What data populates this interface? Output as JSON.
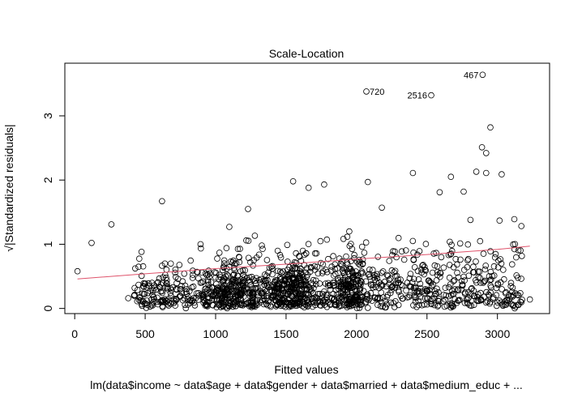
{
  "chart_data": {
    "type": "scatter",
    "title": "Scale-Location",
    "xlabel": "Fitted values",
    "ylabel": "√|Standardized residuals|",
    "subtitle": "lm(data$income ~ data$age + data$gender + data$married + data$medium_educ + ...",
    "xlim": [
      -70,
      3370
    ],
    "ylim": [
      -0.08,
      3.82
    ],
    "x_ticks": [
      0,
      500,
      1000,
      1500,
      2000,
      2500,
      3000
    ],
    "y_ticks": [
      0,
      1,
      2,
      3
    ],
    "grid": false,
    "point_style": "open circle",
    "point_color": "#000000",
    "line_color": "#DF536B",
    "smooth_line": {
      "x": [
        20,
        500,
        1000,
        1500,
        2000,
        2500,
        3000,
        3230
      ],
      "y": [
        0.46,
        0.54,
        0.62,
        0.69,
        0.77,
        0.84,
        0.92,
        0.97
      ]
    },
    "labeled_outliers": [
      {
        "label": "467",
        "x": 2895,
        "y": 3.64,
        "side": "left"
      },
      {
        "label": "720",
        "x": 2070,
        "y": 3.38,
        "side": "right"
      },
      {
        "label": "2516",
        "x": 2530,
        "y": 3.32,
        "side": "left"
      }
    ],
    "notable_points": [
      {
        "x": 2950,
        "y": 2.82
      },
      {
        "x": 2890,
        "y": 2.51
      },
      {
        "x": 2920,
        "y": 2.42
      },
      {
        "x": 2850,
        "y": 2.13
      },
      {
        "x": 2920,
        "y": 2.11
      },
      {
        "x": 2400,
        "y": 2.11
      },
      {
        "x": 3030,
        "y": 2.09
      },
      {
        "x": 2080,
        "y": 1.97
      },
      {
        "x": 1550,
        "y": 1.98
      },
      {
        "x": 1770,
        "y": 1.93
      },
      {
        "x": 1660,
        "y": 1.88
      },
      {
        "x": 2670,
        "y": 2.05
      },
      {
        "x": 2760,
        "y": 1.82
      },
      {
        "x": 620,
        "y": 1.67
      },
      {
        "x": 1230,
        "y": 1.55
      },
      {
        "x": 2180,
        "y": 1.57
      },
      {
        "x": 260,
        "y": 1.31
      },
      {
        "x": 120,
        "y": 1.02
      },
      {
        "x": 20,
        "y": 0.58
      },
      {
        "x": 380,
        "y": 0.16
      },
      {
        "x": 3230,
        "y": 0.14
      },
      {
        "x": 3120,
        "y": 1.39
      },
      {
        "x": 2590,
        "y": 1.81
      }
    ],
    "cloud": {
      "n_points": 1500,
      "seed": 7,
      "x_range": [
        420,
        3180
      ],
      "clusters": [
        {
          "x": 1530,
          "sd": 110,
          "weight": 0.14
        },
        {
          "x": 1950,
          "sd": 110,
          "weight": 0.13
        },
        {
          "x": 1100,
          "sd": 160,
          "weight": 0.12
        }
      ],
      "y_shape": "half-normal",
      "y_scale_at_start": 0.72,
      "y_scale_per_1000": 0.12,
      "y_max": 1.7
    }
  }
}
